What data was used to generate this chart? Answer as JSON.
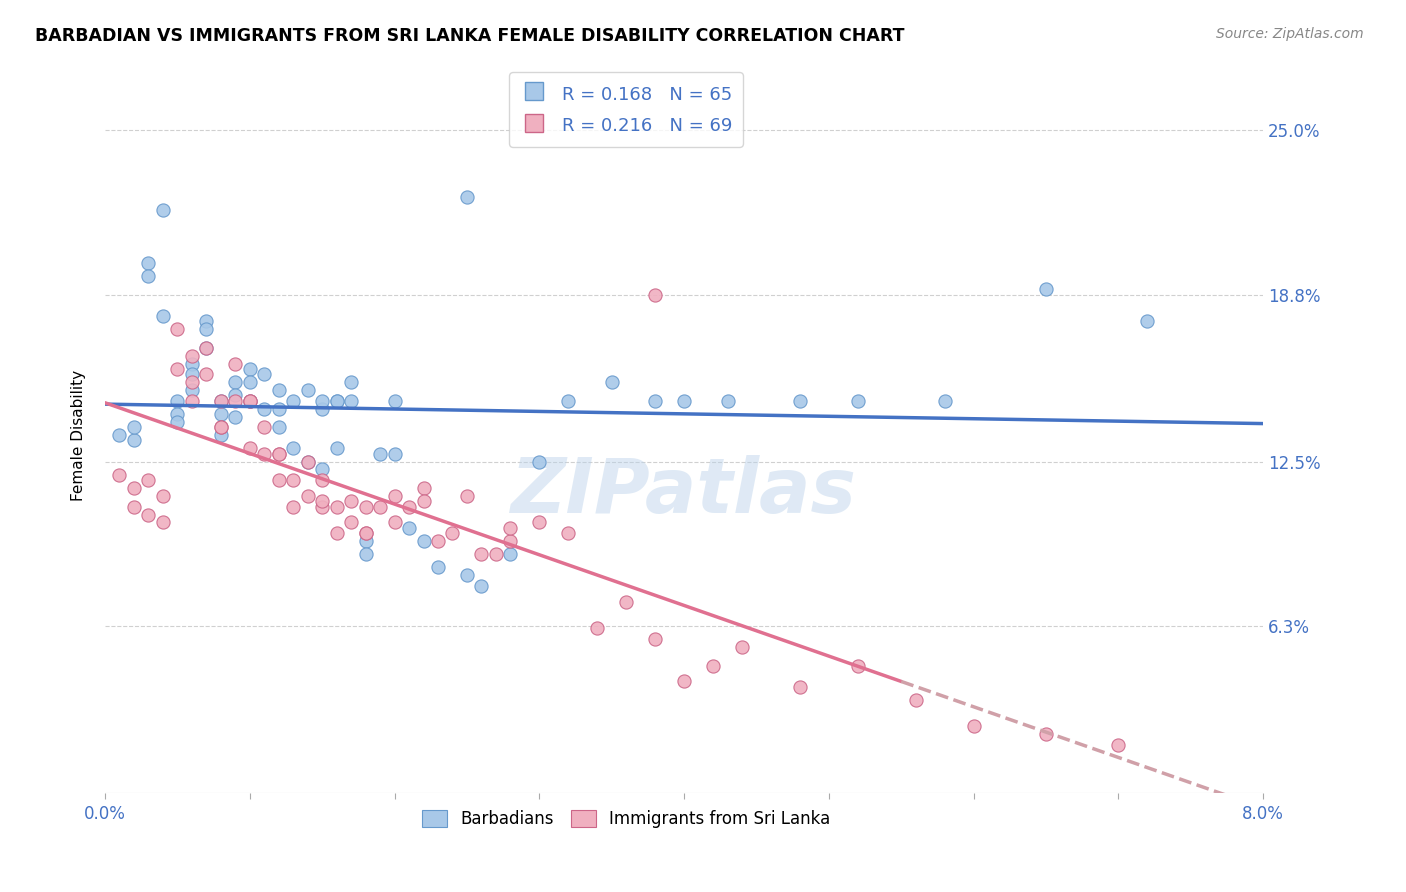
{
  "title": "BARBADIAN VS IMMIGRANTS FROM SRI LANKA FEMALE DISABILITY CORRELATION CHART",
  "source": "Source: ZipAtlas.com",
  "ylabel": "Female Disability",
  "yticks": [
    0.063,
    0.125,
    0.188,
    0.25
  ],
  "ytick_labels": [
    "6.3%",
    "12.5%",
    "18.8%",
    "25.0%"
  ],
  "xmin": 0.0,
  "xmax": 0.08,
  "ymin": 0.0,
  "ymax": 0.27,
  "watermark": "ZIPatlas",
  "legend_label1": "Barbadians",
  "legend_label2": "Immigrants from Sri Lanka",
  "color_blue": "#a8c8e8",
  "color_blue_edge": "#6699cc",
  "color_pink": "#f0b0c0",
  "color_pink_edge": "#cc6688",
  "color_trend_blue": "#4472c4",
  "color_trend_pink": "#e07090",
  "color_trend_pink_dash": "#d0a0a8",
  "barbadians_x": [
    0.001,
    0.002,
    0.002,
    0.003,
    0.003,
    0.004,
    0.004,
    0.005,
    0.005,
    0.005,
    0.006,
    0.006,
    0.006,
    0.007,
    0.007,
    0.007,
    0.008,
    0.008,
    0.008,
    0.009,
    0.009,
    0.009,
    0.01,
    0.01,
    0.01,
    0.011,
    0.011,
    0.012,
    0.012,
    0.012,
    0.013,
    0.013,
    0.014,
    0.014,
    0.015,
    0.015,
    0.016,
    0.016,
    0.017,
    0.018,
    0.018,
    0.019,
    0.02,
    0.021,
    0.022,
    0.023,
    0.025,
    0.026,
    0.028,
    0.03,
    0.032,
    0.035,
    0.038,
    0.04,
    0.043,
    0.048,
    0.052,
    0.058,
    0.065,
    0.072,
    0.015,
    0.016,
    0.017,
    0.02,
    0.025
  ],
  "barbadians_y": [
    0.135,
    0.133,
    0.138,
    0.2,
    0.195,
    0.22,
    0.18,
    0.148,
    0.143,
    0.14,
    0.162,
    0.158,
    0.152,
    0.178,
    0.175,
    0.168,
    0.148,
    0.143,
    0.135,
    0.155,
    0.15,
    0.142,
    0.16,
    0.155,
    0.148,
    0.158,
    0.145,
    0.152,
    0.145,
    0.138,
    0.148,
    0.13,
    0.152,
    0.125,
    0.145,
    0.122,
    0.148,
    0.13,
    0.155,
    0.095,
    0.09,
    0.128,
    0.128,
    0.1,
    0.095,
    0.085,
    0.082,
    0.078,
    0.09,
    0.125,
    0.148,
    0.155,
    0.148,
    0.148,
    0.148,
    0.148,
    0.148,
    0.148,
    0.19,
    0.178,
    0.148,
    0.148,
    0.148,
    0.148,
    0.225
  ],
  "srilanka_x": [
    0.001,
    0.002,
    0.002,
    0.003,
    0.003,
    0.004,
    0.004,
    0.005,
    0.005,
    0.006,
    0.006,
    0.007,
    0.007,
    0.008,
    0.008,
    0.009,
    0.009,
    0.01,
    0.01,
    0.011,
    0.011,
    0.012,
    0.012,
    0.013,
    0.013,
    0.014,
    0.014,
    0.015,
    0.015,
    0.016,
    0.016,
    0.017,
    0.017,
    0.018,
    0.018,
    0.019,
    0.02,
    0.02,
    0.021,
    0.022,
    0.023,
    0.024,
    0.025,
    0.026,
    0.027,
    0.028,
    0.03,
    0.032,
    0.034,
    0.036,
    0.038,
    0.04,
    0.042,
    0.044,
    0.048,
    0.052,
    0.056,
    0.06,
    0.065,
    0.07,
    0.006,
    0.008,
    0.01,
    0.012,
    0.015,
    0.018,
    0.022,
    0.028,
    0.038
  ],
  "srilanka_y": [
    0.12,
    0.115,
    0.108,
    0.118,
    0.105,
    0.112,
    0.102,
    0.175,
    0.16,
    0.165,
    0.155,
    0.168,
    0.158,
    0.148,
    0.138,
    0.162,
    0.148,
    0.148,
    0.13,
    0.138,
    0.128,
    0.128,
    0.118,
    0.118,
    0.108,
    0.125,
    0.112,
    0.118,
    0.108,
    0.108,
    0.098,
    0.11,
    0.102,
    0.108,
    0.098,
    0.108,
    0.112,
    0.102,
    0.108,
    0.115,
    0.095,
    0.098,
    0.112,
    0.09,
    0.09,
    0.095,
    0.102,
    0.098,
    0.062,
    0.072,
    0.058,
    0.042,
    0.048,
    0.055,
    0.04,
    0.048,
    0.035,
    0.025,
    0.022,
    0.018,
    0.148,
    0.138,
    0.148,
    0.128,
    0.11,
    0.098,
    0.11,
    0.1,
    0.188
  ]
}
